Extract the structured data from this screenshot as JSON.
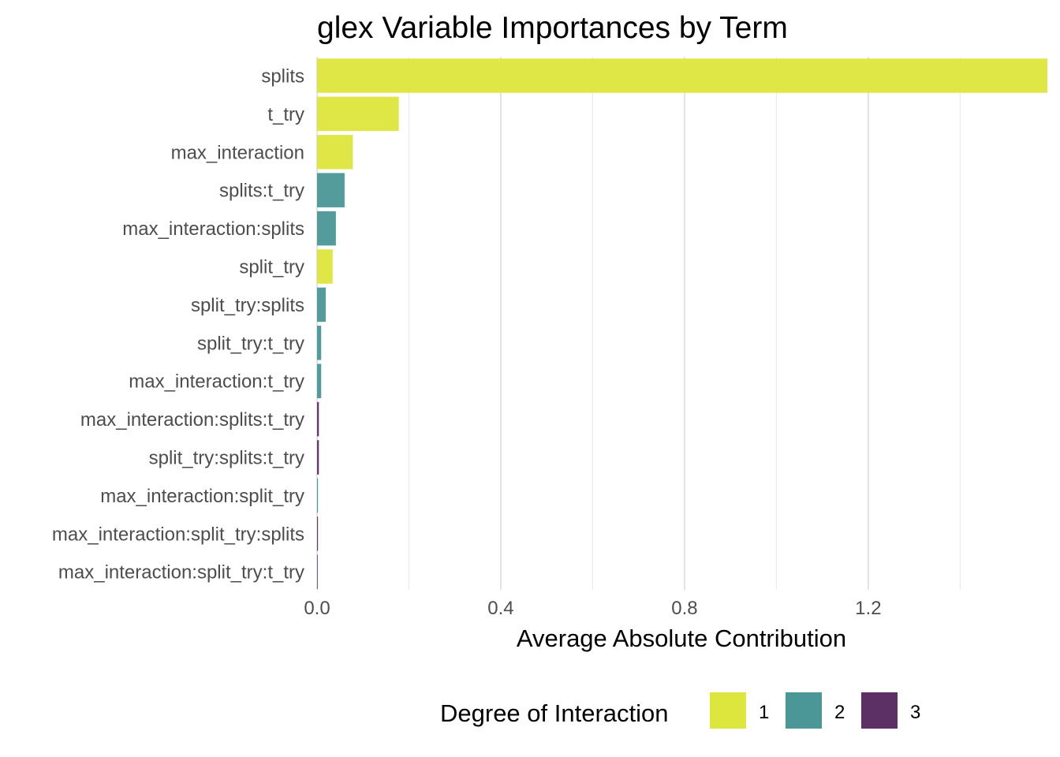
{
  "chart_data": {
    "type": "bar",
    "orientation": "horizontal",
    "title": "glex Variable Importances by Term",
    "xlabel": "Average Absolute Contribution",
    "ylabel": "",
    "xlim": [
      0,
      1.59
    ],
    "xticks": [
      0.0,
      0.4,
      0.8,
      1.2
    ],
    "xtick_labels": [
      "0.0",
      "0.4",
      "0.8",
      "1.2"
    ],
    "grid": true,
    "categories": [
      "splits",
      "t_try",
      "max_interaction",
      "splits:t_try",
      "max_interaction:splits",
      "split_try",
      "split_try:splits",
      "split_try:t_try",
      "max_interaction:t_try",
      "max_interaction:splits:t_try",
      "split_try:splits:t_try",
      "max_interaction:split_try",
      "max_interaction:split_try:splits",
      "max_interaction:split_try:t_try"
    ],
    "values": [
      1.59,
      0.178,
      0.078,
      0.06,
      0.041,
      0.034,
      0.019,
      0.009,
      0.009,
      0.004,
      0.004,
      0.002,
      0.002,
      0.001
    ],
    "degree": [
      1,
      1,
      1,
      2,
      2,
      1,
      2,
      2,
      2,
      3,
      3,
      2,
      3,
      3
    ],
    "legend": {
      "title": "Degree of Interaction",
      "position": "bottom",
      "entries": [
        {
          "label": "1",
          "color": "#dde63c"
        },
        {
          "label": "2",
          "color": "#4b9797"
        },
        {
          "label": "3",
          "color": "#5d3065"
        }
      ]
    }
  }
}
